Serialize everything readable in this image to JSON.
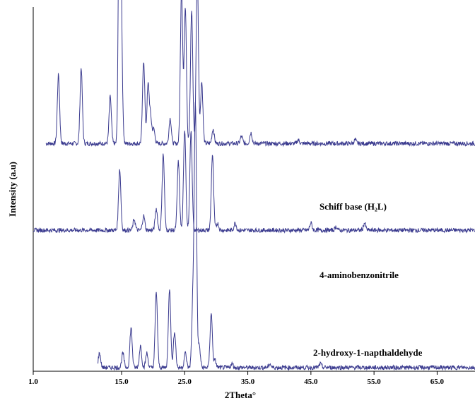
{
  "chart_data": {
    "type": "line",
    "xlabel": "2Theta°",
    "ylabel": "Intensity (a.u)",
    "xlim": [
      1.0,
      71.0
    ],
    "x_ticks": [
      "1.0",
      "15.0",
      "25.0",
      "35.0",
      "45.0",
      "55.0",
      "65.0"
    ],
    "x_tick_values": [
      1.0,
      15.0,
      25.0,
      35.0,
      45.0,
      55.0,
      65.0
    ],
    "grid": false,
    "color": "#3b3b8f",
    "series": [
      {
        "name": "Schiff base (H₂L)",
        "offset": 0.62,
        "scale": 1.0,
        "peaks": [
          [
            5.0,
            0.19
          ],
          [
            8.6,
            0.21
          ],
          [
            13.2,
            0.13
          ],
          [
            14.7,
            0.97
          ],
          [
            15.0,
            0.2
          ],
          [
            18.5,
            0.23
          ],
          [
            19.2,
            0.16
          ],
          [
            19.6,
            0.07
          ],
          [
            20.1,
            0.04
          ],
          [
            22.7,
            0.07
          ],
          [
            24.5,
            0.43
          ],
          [
            25.1,
            0.38
          ],
          [
            26.1,
            0.37
          ],
          [
            27.0,
            0.47
          ],
          [
            27.7,
            0.17
          ],
          [
            29.5,
            0.04
          ],
          [
            34.0,
            0.02
          ],
          [
            35.5,
            0.03
          ],
          [
            43.0,
            0.01
          ],
          [
            52.0,
            0.01
          ]
        ]
      },
      {
        "name": "4-aminobenzonitrile",
        "offset": 0.38,
        "scale": 1.0,
        "peaks": [
          [
            14.7,
            0.17
          ],
          [
            17.0,
            0.03
          ],
          [
            18.5,
            0.04
          ],
          [
            20.5,
            0.06
          ],
          [
            21.6,
            0.21
          ],
          [
            24.0,
            0.19
          ],
          [
            25.0,
            0.28
          ],
          [
            26.0,
            0.27
          ],
          [
            29.4,
            0.21
          ],
          [
            30.2,
            0.02
          ],
          [
            33.0,
            0.02
          ],
          [
            45.0,
            0.02
          ],
          [
            49.0,
            0.01
          ],
          [
            53.5,
            0.02
          ]
        ]
      },
      {
        "name": "2-hydroxy-1-napthaldehyde",
        "offset": 0.0,
        "scale": 1.0,
        "peaks": [
          [
            11.5,
            0.04
          ],
          [
            15.2,
            0.04
          ],
          [
            16.5,
            0.11
          ],
          [
            18.0,
            0.06
          ],
          [
            19.0,
            0.04
          ],
          [
            20.5,
            0.21
          ],
          [
            22.6,
            0.22
          ],
          [
            23.4,
            0.1
          ],
          [
            25.1,
            0.04
          ],
          [
            26.3,
            0.18
          ],
          [
            26.7,
            0.72
          ],
          [
            27.3,
            0.06
          ],
          [
            29.2,
            0.15
          ],
          [
            29.8,
            0.02
          ],
          [
            32.5,
            0.01
          ],
          [
            38.5,
            0.01
          ],
          [
            46.5,
            0.01
          ]
        ]
      }
    ]
  }
}
